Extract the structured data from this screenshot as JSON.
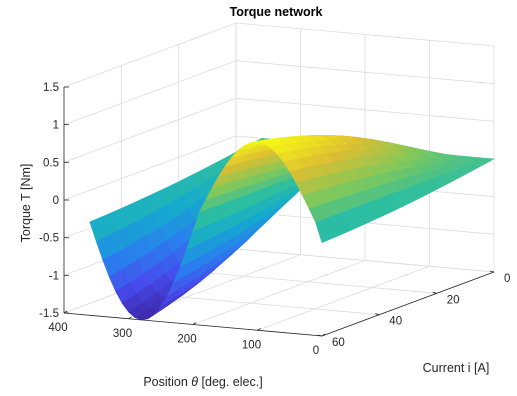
{
  "chart_data": {
    "type": "surface",
    "title": "Torque network",
    "zlabel": "Torque T [Nm]",
    "xlabel_parts": [
      "Position ",
      "θ",
      " [deg. elec.]"
    ],
    "ylabel": "Current i [A]",
    "x_ticks": [
      "400",
      "300",
      "200",
      "100",
      "0"
    ],
    "y_ticks": [
      "0",
      "20",
      "40",
      "60"
    ],
    "z_ticks": [
      "1.5",
      "1",
      "0.5",
      "0",
      "-0.5",
      "-1",
      "-1.5"
    ],
    "x_range": [
      0,
      360
    ],
    "y_range": [
      0,
      60
    ],
    "z_range": [
      -1.5,
      1.5
    ],
    "surface": {
      "x_start": 0,
      "x_end": 360,
      "x_count": 37,
      "y_start": 0,
      "y_end": 60,
      "y_count": 13,
      "peak_torque": 1.0,
      "peak_position": 100,
      "trough_torque": -1.5,
      "trough_position": 330,
      "current_saturation": 48
    },
    "colormap": "parula"
  }
}
